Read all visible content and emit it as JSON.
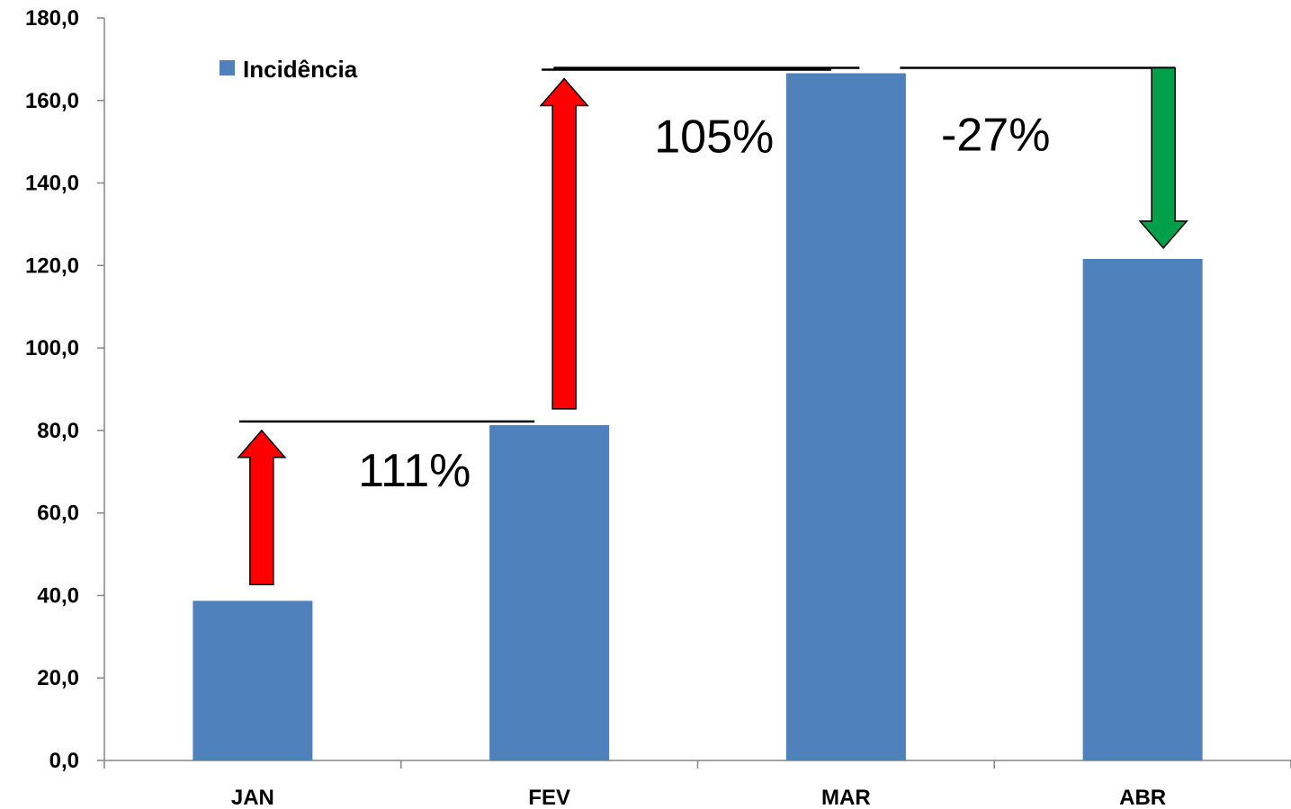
{
  "chart_data": {
    "type": "bar",
    "categories": [
      "JAN",
      "FEV",
      "MAR",
      "ABR"
    ],
    "series": [
      {
        "name": "Incidência",
        "values": [
          38.7,
          81.3,
          166.6,
          121.6
        ],
        "color": "#4F81BD"
      }
    ],
    "ylim": [
      0,
      180
    ],
    "yticks": [
      "0,0",
      "20,0",
      "40,0",
      "60,0",
      "80,0",
      "100,0",
      "120,0",
      "140,0",
      "160,0",
      "180,0"
    ],
    "ytick_values": [
      0,
      20,
      40,
      60,
      80,
      100,
      120,
      140,
      160,
      180
    ],
    "grid": false,
    "legend": {
      "position": "top-left"
    },
    "annotations": [
      {
        "text": "111%",
        "from": "JAN",
        "to": "FEV",
        "direction": "up",
        "color": "#FF0000"
      },
      {
        "text": "105%",
        "from": "FEV",
        "to": "MAR",
        "direction": "up",
        "color": "#FF0000"
      },
      {
        "text": "-27%",
        "from": "MAR",
        "to": "ABR",
        "direction": "down",
        "color": "#00A04A"
      }
    ]
  }
}
